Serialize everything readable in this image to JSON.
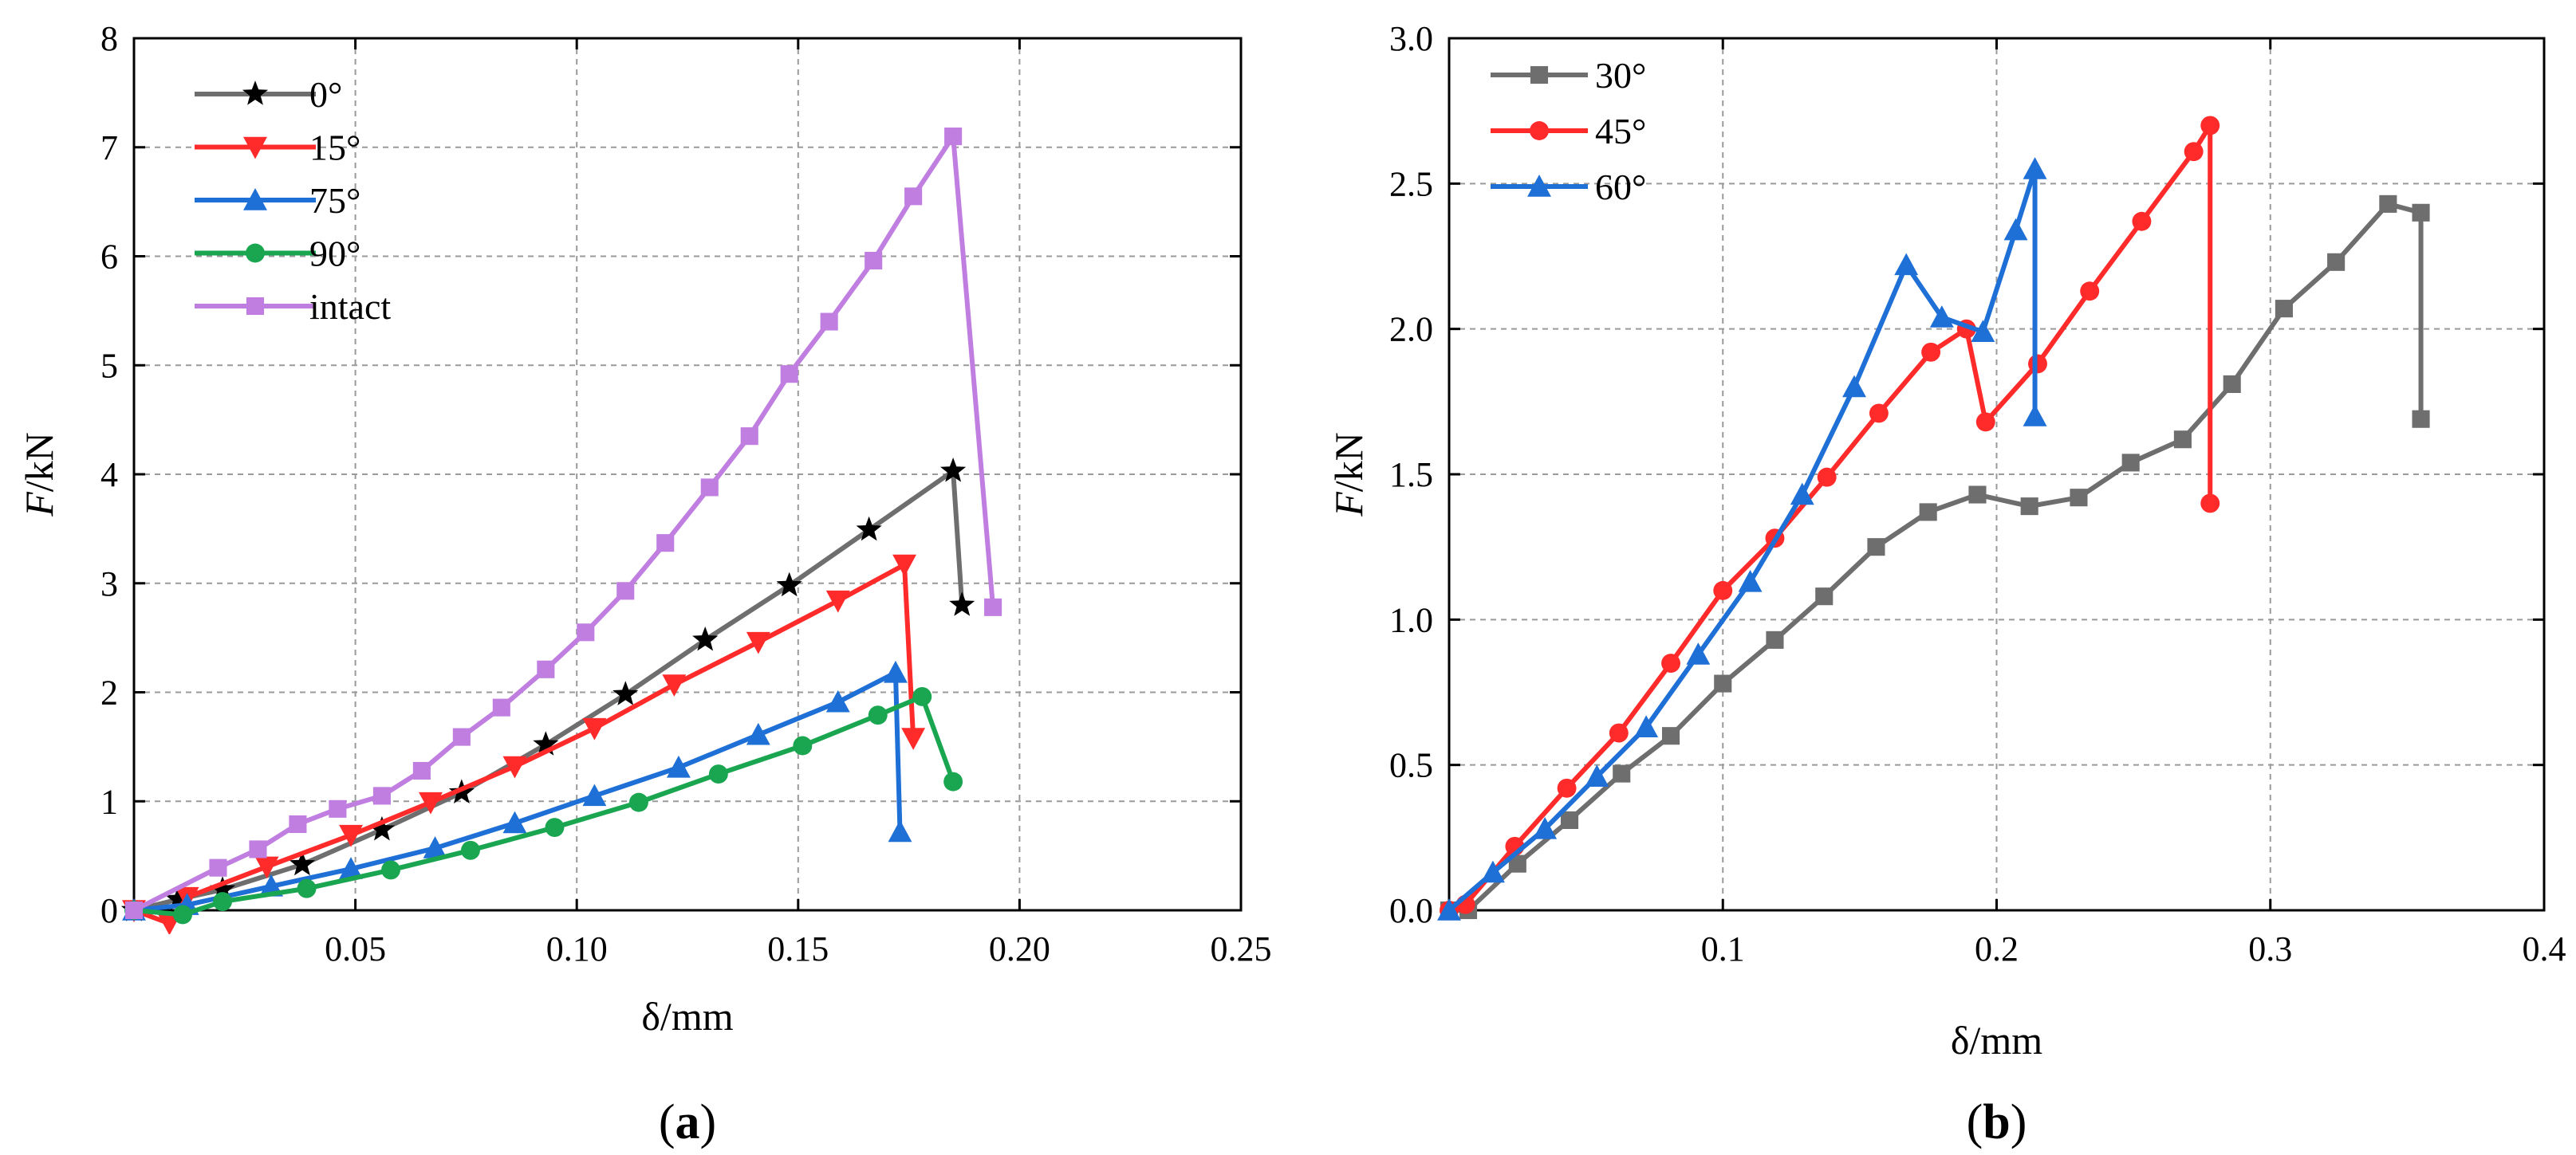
{
  "chart_data": [
    {
      "id": "a",
      "type": "line",
      "panel_label": "a",
      "xlabel": "δ/mm",
      "ylabel_italic": "F",
      "ylabel_rest": "/kN",
      "xlim": [
        0,
        0.25
      ],
      "ylim": [
        0,
        8
      ],
      "xticks": [
        0.05,
        0.1,
        0.15,
        0.2,
        0.25
      ],
      "xtick_labels": [
        "0.05",
        "0.10",
        "0.15",
        "0.20",
        "0.25"
      ],
      "yticks": [
        0,
        1,
        2,
        3,
        4,
        5,
        6,
        7,
        8
      ],
      "ytick_labels": [
        "0",
        "1",
        "2",
        "3",
        "4",
        "5",
        "6",
        "7",
        "8"
      ],
      "grid": true,
      "legend_position": "top-left",
      "series": [
        {
          "name": "0°",
          "color": "#6e6e6e",
          "marker_color": "#000000",
          "marker": "star",
          "x": [
            0.0,
            0.01,
            0.02,
            0.038,
            0.056,
            0.074,
            0.093,
            0.111,
            0.129,
            0.148,
            0.166,
            0.185,
            0.187
          ],
          "y": [
            0.0,
            0.1,
            0.19,
            0.42,
            0.74,
            1.08,
            1.52,
            1.98,
            2.48,
            2.98,
            3.49,
            4.03,
            2.8
          ]
        },
        {
          "name": "15°",
          "color": "#ff2a2a",
          "marker_color": "#ff2a2a",
          "marker": "triangle-down",
          "x": [
            0.0,
            0.008,
            0.012,
            0.03,
            0.049,
            0.067,
            0.086,
            0.104,
            0.122,
            0.141,
            0.159,
            0.174,
            0.176
          ],
          "y": [
            0.0,
            -0.12,
            0.12,
            0.4,
            0.69,
            0.99,
            1.32,
            1.67,
            2.07,
            2.46,
            2.84,
            3.17,
            1.58
          ]
        },
        {
          "name": "75°",
          "color": "#1e6fd6",
          "marker_color": "#1e6fd6",
          "marker": "triangle-up",
          "x": [
            0.0,
            0.012,
            0.031,
            0.049,
            0.068,
            0.086,
            0.104,
            0.123,
            0.141,
            0.159,
            0.172,
            0.173
          ],
          "y": [
            0.0,
            0.05,
            0.22,
            0.38,
            0.57,
            0.8,
            1.05,
            1.31,
            1.61,
            1.91,
            2.18,
            0.72
          ]
        },
        {
          "name": "90°",
          "color": "#1aa650",
          "marker_color": "#1aa650",
          "marker": "circle",
          "x": [
            0.0,
            0.011,
            0.02,
            0.039,
            0.058,
            0.076,
            0.095,
            0.114,
            0.132,
            0.151,
            0.168,
            0.178,
            0.185
          ],
          "y": [
            0.0,
            -0.04,
            0.08,
            0.2,
            0.37,
            0.55,
            0.76,
            0.99,
            1.25,
            1.51,
            1.79,
            1.96,
            1.18
          ]
        },
        {
          "name": "intact",
          "color": "#c07ee0",
          "marker_color": "#c07ee0",
          "marker": "square",
          "x": [
            0.0,
            0.019,
            0.028,
            0.037,
            0.046,
            0.056,
            0.065,
            0.074,
            0.083,
            0.093,
            0.102,
            0.111,
            0.12,
            0.13,
            0.139,
            0.148,
            0.157,
            0.167,
            0.176,
            0.185,
            0.194,
            0.204,
            0.213,
            0.218,
            0.224
          ],
          "y": [
            0.0,
            0.39,
            0.56,
            0.79,
            0.93,
            1.05,
            1.28,
            1.59,
            1.86,
            2.21,
            2.55,
            2.93,
            3.37,
            3.88,
            4.35,
            4.92,
            5.4,
            5.96,
            6.55,
            7.1,
            2.78,
            null,
            null,
            null,
            null
          ]
        }
      ]
    },
    {
      "id": "b",
      "type": "line",
      "panel_label": "b",
      "xlabel": "δ/mm",
      "ylabel_italic": "F",
      "ylabel_rest": "/kN",
      "xlim": [
        0,
        0.4
      ],
      "ylim": [
        0,
        3.0
      ],
      "xticks": [
        0.1,
        0.2,
        0.3,
        0.4
      ],
      "xtick_labels": [
        "0.1",
        "0.2",
        "0.3",
        "0.4"
      ],
      "yticks": [
        0.0,
        0.5,
        1.0,
        1.5,
        2.0,
        2.5,
        3.0
      ],
      "ytick_labels": [
        "0.0",
        "0.5",
        "1.0",
        "1.5",
        "2.0",
        "2.5",
        "3.0"
      ],
      "grid": true,
      "legend_position": "top-left",
      "series": [
        {
          "name": "30°",
          "color": "#6e6e6e",
          "marker_color": "#6e6e6e",
          "marker": "square",
          "x": [
            0.0,
            0.007,
            0.025,
            0.044,
            0.063,
            0.081,
            0.1,
            0.119,
            0.137,
            0.156,
            0.175,
            0.193,
            0.212,
            0.23,
            0.249,
            0.268,
            0.286,
            0.305,
            0.324,
            0.343,
            0.355,
            0.355
          ],
          "y": [
            0.0,
            0.0,
            0.16,
            0.31,
            0.47,
            0.6,
            0.78,
            0.93,
            1.08,
            1.25,
            1.37,
            1.43,
            1.39,
            1.42,
            1.54,
            1.62,
            1.81,
            2.07,
            2.23,
            2.43,
            2.4,
            1.69
          ]
        },
        {
          "name": "45°",
          "color": "#ff2a2a",
          "marker_color": "#ff2a2a",
          "marker": "circle",
          "x": [
            0.0,
            0.006,
            0.024,
            0.043,
            0.062,
            0.081,
            0.1,
            0.119,
            0.138,
            0.157,
            0.176,
            0.189,
            0.196,
            0.215,
            0.234,
            0.253,
            0.272,
            0.278,
            0.278
          ],
          "y": [
            0.0,
            0.02,
            0.22,
            0.42,
            0.61,
            0.85,
            1.1,
            1.28,
            1.49,
            1.71,
            1.92,
            2.0,
            1.68,
            1.88,
            2.13,
            2.37,
            2.61,
            2.7,
            1.4
          ]
        },
        {
          "name": "60°",
          "color": "#1e6fd6",
          "marker_color": "#1e6fd6",
          "marker": "triangle-up",
          "x": [
            0.0,
            0.016,
            0.035,
            0.054,
            0.072,
            0.091,
            0.11,
            0.129,
            0.148,
            0.167,
            0.18,
            0.195,
            0.207,
            0.214,
            0.214
          ],
          "y": [
            0.0,
            0.13,
            0.28,
            0.46,
            0.63,
            0.88,
            1.13,
            1.43,
            1.8,
            2.22,
            2.04,
            1.99,
            2.34,
            2.55,
            1.7
          ]
        }
      ]
    }
  ]
}
